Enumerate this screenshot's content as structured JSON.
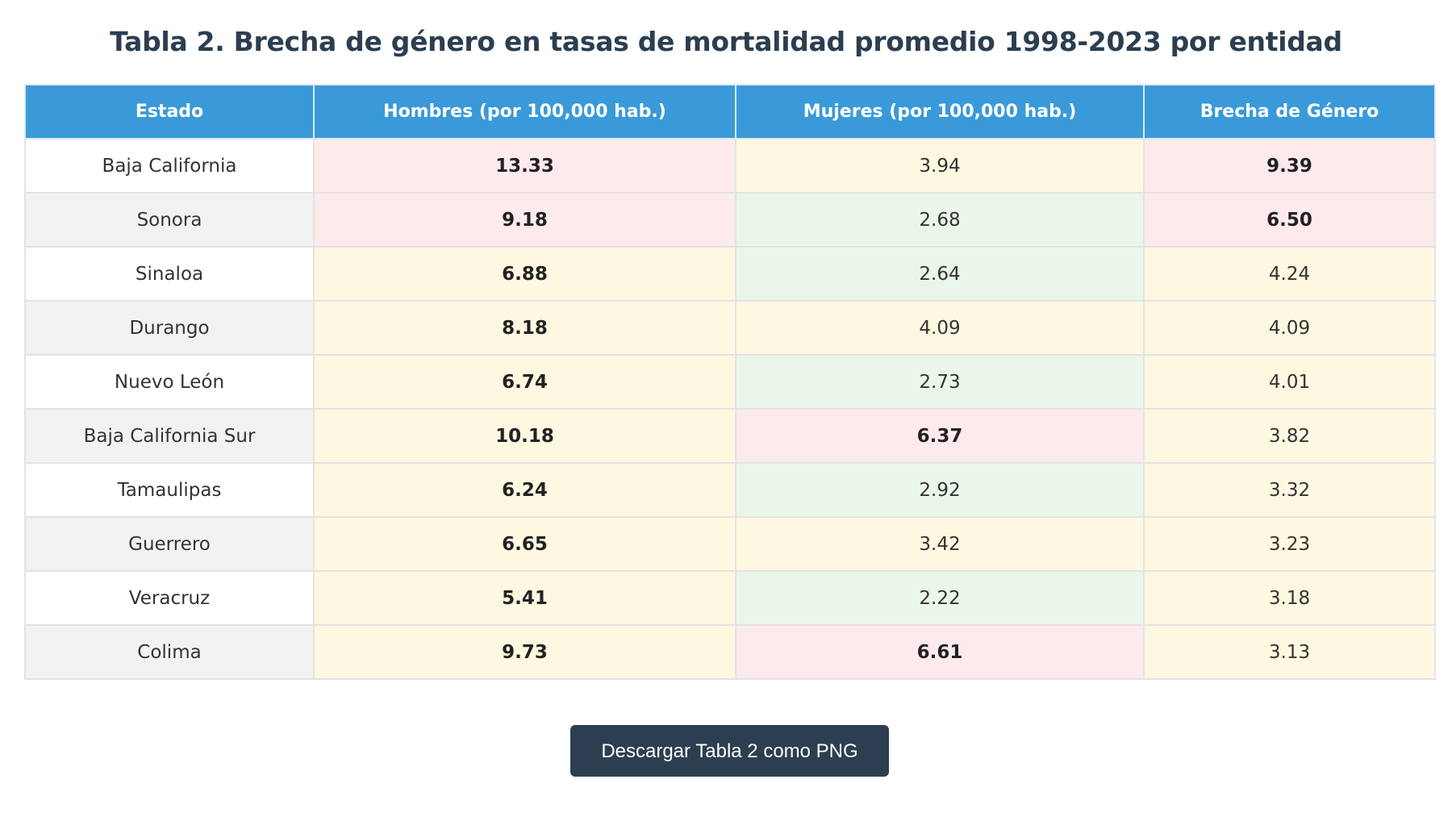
{
  "title": "Tabla 2. Brecha de género en tasas de mortalidad promedio 1998-2023 por entidad",
  "button_label": "Descargar Tabla 2 como PNG",
  "colors": {
    "header": "#3a9ad9",
    "high": "#fdeaed",
    "medium": "#fef8e1",
    "low": "#e9f6e9",
    "button": "#2c3e50"
  },
  "chart_data": {
    "type": "table",
    "columns": [
      "Estado",
      "Hombres (por 100,000 hab.)",
      "Mujeres (por 100,000 hab.)",
      "Brecha de Género"
    ],
    "rows": [
      {
        "estado": "Baja California",
        "hombres": "13.33",
        "mujeres": "3.94",
        "brecha": "9.39",
        "hombres_level": "high",
        "mujeres_level": "medium",
        "brecha_level": "high"
      },
      {
        "estado": "Sonora",
        "hombres": "9.18",
        "mujeres": "2.68",
        "brecha": "6.50",
        "hombres_level": "high",
        "mujeres_level": "low",
        "brecha_level": "high"
      },
      {
        "estado": "Sinaloa",
        "hombres": "6.88",
        "mujeres": "2.64",
        "brecha": "4.24",
        "hombres_level": "medium",
        "mujeres_level": "low",
        "brecha_level": "medium"
      },
      {
        "estado": "Durango",
        "hombres": "8.18",
        "mujeres": "4.09",
        "brecha": "4.09",
        "hombres_level": "medium",
        "mujeres_level": "medium",
        "brecha_level": "medium"
      },
      {
        "estado": "Nuevo León",
        "hombres": "6.74",
        "mujeres": "2.73",
        "brecha": "4.01",
        "hombres_level": "medium",
        "mujeres_level": "low",
        "brecha_level": "medium"
      },
      {
        "estado": "Baja California Sur",
        "hombres": "10.18",
        "mujeres": "6.37",
        "brecha": "3.82",
        "hombres_level": "medium",
        "mujeres_level": "high",
        "brecha_level": "medium"
      },
      {
        "estado": "Tamaulipas",
        "hombres": "6.24",
        "mujeres": "2.92",
        "brecha": "3.32",
        "hombres_level": "medium",
        "mujeres_level": "low",
        "brecha_level": "medium"
      },
      {
        "estado": "Guerrero",
        "hombres": "6.65",
        "mujeres": "3.42",
        "brecha": "3.23",
        "hombres_level": "medium",
        "mujeres_level": "medium",
        "brecha_level": "medium"
      },
      {
        "estado": "Veracruz",
        "hombres": "5.41",
        "mujeres": "2.22",
        "brecha": "3.18",
        "hombres_level": "medium",
        "mujeres_level": "low",
        "brecha_level": "medium"
      },
      {
        "estado": "Colima",
        "hombres": "9.73",
        "mujeres": "6.61",
        "brecha": "3.13",
        "hombres_level": "medium",
        "mujeres_level": "high",
        "brecha_level": "medium"
      }
    ]
  }
}
